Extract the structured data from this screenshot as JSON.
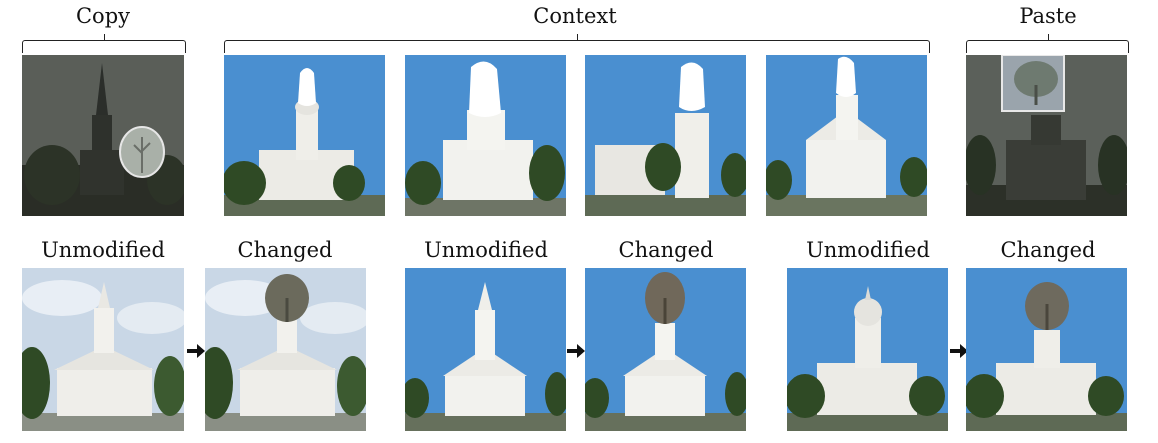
{
  "top_labels": {
    "copy": "Copy",
    "context": "Context",
    "paste": "Paste"
  },
  "bottom_labels": [
    "Unmodified",
    "Changed",
    "Unmodified",
    "Changed",
    "Unmodified",
    "Changed"
  ],
  "colors": {
    "sky_blue": "#4a8fd0",
    "sky_cloudy": "#c9d7e6",
    "dark_scene": "#3c4038",
    "church_white": "#f2f2ee",
    "tree_green": "#2f4a25",
    "mask_white": "#ffffff"
  }
}
